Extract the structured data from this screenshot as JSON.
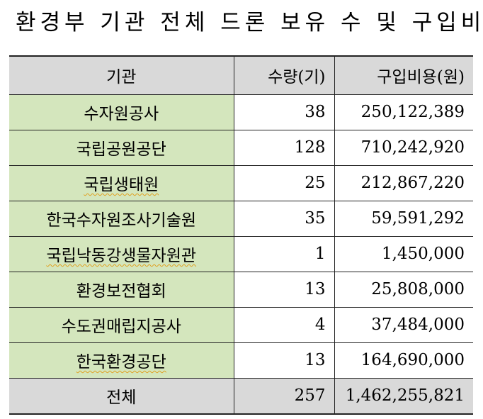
{
  "title": "환경부 기관 전체 드론 보유 수 및 구입비",
  "table": {
    "headers": [
      "기관",
      "수량(기)",
      "구입비용(원)"
    ],
    "rows": [
      {
        "name": "수자원공사",
        "qty": "38",
        "cost": "250,122,389"
      },
      {
        "name": "국립공원공단",
        "qty": "128",
        "cost": "710,242,920"
      },
      {
        "name": "국립생태원",
        "qty": "25",
        "cost": "212,867,220"
      },
      {
        "name": "한국수자원조사기술원",
        "qty": "35",
        "cost": "59,591,292"
      },
      {
        "name": "국립낙동강생물자원관",
        "qty": "1",
        "cost": "1,450,000"
      },
      {
        "name": "환경보전협회",
        "qty": "13",
        "cost": "25,808,000"
      },
      {
        "name": "수도권매립지공사",
        "qty": "4",
        "cost": "37,484,000"
      },
      {
        "name": "한국환경공단",
        "qty": "13",
        "cost": "164,690,000"
      }
    ],
    "total": {
      "name": "전체",
      "qty": "257",
      "cost": "1,462,255,821"
    }
  }
}
